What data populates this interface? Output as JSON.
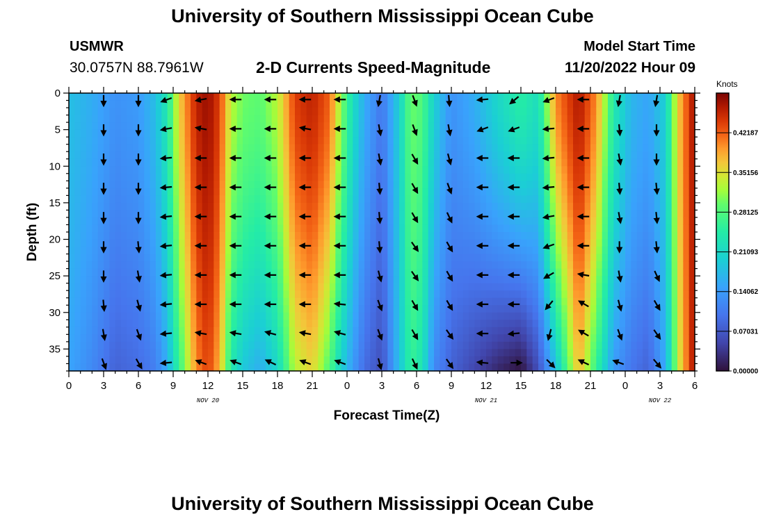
{
  "header": {
    "title": "University of Southern Mississippi Ocean Cube",
    "station": "USMWR",
    "coords": "30.0757N  88.7961W",
    "subtitle": "2-D Currents Speed-Magnitude",
    "model_label": "Model Start Time",
    "model_time": "11/20/2022 Hour 09"
  },
  "footer": {
    "title": "University of Southern Mississippi Ocean Cube"
  },
  "chart_data": {
    "type": "heatmap",
    "title": "2-D Currents Speed-Magnitude",
    "xlabel": "Forecast Time(Z)",
    "ylabel": "Depth (ft)",
    "colorbar_label": "Knots",
    "colorbar_ticks": [
      "0.00000",
      "0.07031",
      "0.14062",
      "0.21093",
      "0.28125",
      "0.35156",
      "0.42187"
    ],
    "colorbar_range": [
      0,
      0.4922
    ],
    "x_range_hours": [
      0,
      54
    ],
    "x_tick_hours": [
      0,
      3,
      6,
      9,
      12,
      15,
      18,
      21,
      24,
      27,
      30,
      33,
      36,
      39,
      42,
      45,
      48,
      51,
      54
    ],
    "x_tick_labels": [
      "0",
      "3",
      "6",
      "9",
      "12",
      "15",
      "18",
      "21",
      "0",
      "3",
      "6",
      "9",
      "12",
      "15",
      "18",
      "21",
      "0",
      "3",
      "6"
    ],
    "date_labels": [
      {
        "hour": 12,
        "text": "NOV 20"
      },
      {
        "hour": 36,
        "text": "NOV 21"
      },
      {
        "hour": 51,
        "text": "NOV 22"
      }
    ],
    "y_range_ft": [
      0,
      38
    ],
    "y_tick_values": [
      0,
      5,
      10,
      15,
      20,
      25,
      30,
      35
    ],
    "y_tick_labels": [
      "0",
      "5",
      "10",
      "15",
      "20",
      "25",
      "30",
      "35"
    ],
    "speed_profile": [
      {
        "hour": 0,
        "top": 0.18,
        "bottom": 0.15
      },
      {
        "hour": 2,
        "top": 0.16,
        "bottom": 0.12
      },
      {
        "hour": 4,
        "top": 0.13,
        "bottom": 0.08
      },
      {
        "hour": 6,
        "top": 0.14,
        "bottom": 0.09
      },
      {
        "hour": 7.5,
        "top": 0.18,
        "bottom": 0.11
      },
      {
        "hour": 8.5,
        "top": 0.24,
        "bottom": 0.16
      },
      {
        "hour": 9.5,
        "top": 0.36,
        "bottom": 0.26
      },
      {
        "hour": 11,
        "top": 0.46,
        "bottom": 0.4
      },
      {
        "hour": 12,
        "top": 0.48,
        "bottom": 0.44
      },
      {
        "hour": 13,
        "top": 0.44,
        "bottom": 0.38
      },
      {
        "hour": 14,
        "top": 0.33,
        "bottom": 0.24
      },
      {
        "hour": 15,
        "top": 0.3,
        "bottom": 0.19
      },
      {
        "hour": 16.5,
        "top": 0.29,
        "bottom": 0.16
      },
      {
        "hour": 18,
        "top": 0.33,
        "bottom": 0.21
      },
      {
        "hour": 19.5,
        "top": 0.44,
        "bottom": 0.33
      },
      {
        "hour": 21,
        "top": 0.46,
        "bottom": 0.36
      },
      {
        "hour": 22.5,
        "top": 0.42,
        "bottom": 0.28
      },
      {
        "hour": 23.5,
        "top": 0.31,
        "bottom": 0.2
      },
      {
        "hour": 24.5,
        "top": 0.22,
        "bottom": 0.14
      },
      {
        "hour": 25.5,
        "top": 0.16,
        "bottom": 0.09
      },
      {
        "hour": 27,
        "top": 0.1,
        "bottom": 0.06
      },
      {
        "hour": 28.5,
        "top": 0.2,
        "bottom": 0.18
      },
      {
        "hour": 29.5,
        "top": 0.3,
        "bottom": 0.26
      },
      {
        "hour": 30.5,
        "top": 0.28,
        "bottom": 0.23
      },
      {
        "hour": 31.5,
        "top": 0.2,
        "bottom": 0.12
      },
      {
        "hour": 33,
        "top": 0.13,
        "bottom": 0.08
      },
      {
        "hour": 35,
        "top": 0.16,
        "bottom": 0.05
      },
      {
        "hour": 37,
        "top": 0.21,
        "bottom": 0.02
      },
      {
        "hour": 39,
        "top": 0.25,
        "bottom": 0.0
      },
      {
        "hour": 40.5,
        "top": 0.22,
        "bottom": 0.06
      },
      {
        "hour": 42,
        "top": 0.4,
        "bottom": 0.18
      },
      {
        "hour": 44,
        "top": 0.47,
        "bottom": 0.38
      },
      {
        "hour": 45.5,
        "top": 0.4,
        "bottom": 0.26
      },
      {
        "hour": 47,
        "top": 0.24,
        "bottom": 0.14
      },
      {
        "hour": 48.5,
        "top": 0.17,
        "bottom": 0.1
      },
      {
        "hour": 50,
        "top": 0.15,
        "bottom": 0.08
      },
      {
        "hour": 51.5,
        "top": 0.2,
        "bottom": 0.16
      },
      {
        "hour": 52.5,
        "top": 0.36,
        "bottom": 0.33
      },
      {
        "hour": 54,
        "top": 0.48,
        "bottom": 0.48
      }
    ],
    "arrow_depths_ft": [
      0.5,
      4.5,
      8.5,
      12.5,
      16.5,
      20.5,
      24.5,
      28.5,
      32.5,
      36.5
    ],
    "arrows": [
      {
        "hour": 3,
        "dirs": [
          180,
          180,
          180,
          180,
          180,
          180,
          180,
          175,
          170,
          160
        ]
      },
      {
        "hour": 6,
        "dirs": [
          180,
          180,
          180,
          180,
          180,
          175,
          170,
          165,
          160,
          150
        ]
      },
      {
        "hour": 8.5,
        "dirs": [
          250,
          260,
          265,
          265,
          265,
          265,
          265,
          265,
          265,
          265
        ]
      },
      {
        "hour": 11.5,
        "dirs": [
          260,
          280,
          270,
          270,
          270,
          270,
          270,
          270,
          280,
          290
        ]
      },
      {
        "hour": 14.5,
        "dirs": [
          270,
          270,
          270,
          270,
          270,
          270,
          270,
          270,
          280,
          290
        ]
      },
      {
        "hour": 17.5,
        "dirs": [
          270,
          270,
          270,
          270,
          270,
          270,
          270,
          270,
          285,
          295
        ]
      },
      {
        "hour": 20.5,
        "dirs": [
          270,
          280,
          270,
          270,
          270,
          270,
          270,
          270,
          280,
          290
        ]
      },
      {
        "hour": 23.5,
        "dirs": [
          270,
          270,
          270,
          270,
          270,
          270,
          270,
          275,
          285,
          290
        ]
      },
      {
        "hour": 26.8,
        "dirs": [
          190,
          170,
          170,
          175,
          175,
          175,
          165,
          160,
          160,
          165
        ]
      },
      {
        "hour": 29.8,
        "dirs": [
          160,
          160,
          150,
          150,
          150,
          145,
          145,
          150,
          150,
          155
        ]
      },
      {
        "hour": 32.8,
        "dirs": [
          175,
          170,
          165,
          160,
          155,
          150,
          150,
          150,
          145,
          145
        ]
      },
      {
        "hour": 35.8,
        "dirs": [
          265,
          250,
          270,
          270,
          270,
          270,
          270,
          270,
          270,
          275
        ]
      },
      {
        "hour": 38.5,
        "dirs": [
          230,
          250,
          270,
          270,
          270,
          270,
          270,
          270,
          265,
          90
        ]
      },
      {
        "hour": 41.5,
        "dirs": [
          250,
          265,
          265,
          265,
          260,
          250,
          240,
          220,
          195,
          135
        ]
      },
      {
        "hour": 44.5,
        "dirs": [
          270,
          270,
          270,
          270,
          270,
          270,
          280,
          300,
          300,
          295
        ]
      },
      {
        "hour": 47.5,
        "dirs": [
          190,
          175,
          170,
          175,
          170,
          180,
          170,
          165,
          160,
          290
        ]
      },
      {
        "hour": 50.7,
        "dirs": [
          190,
          180,
          180,
          175,
          175,
          175,
          155,
          150,
          145,
          140
        ]
      }
    ]
  }
}
